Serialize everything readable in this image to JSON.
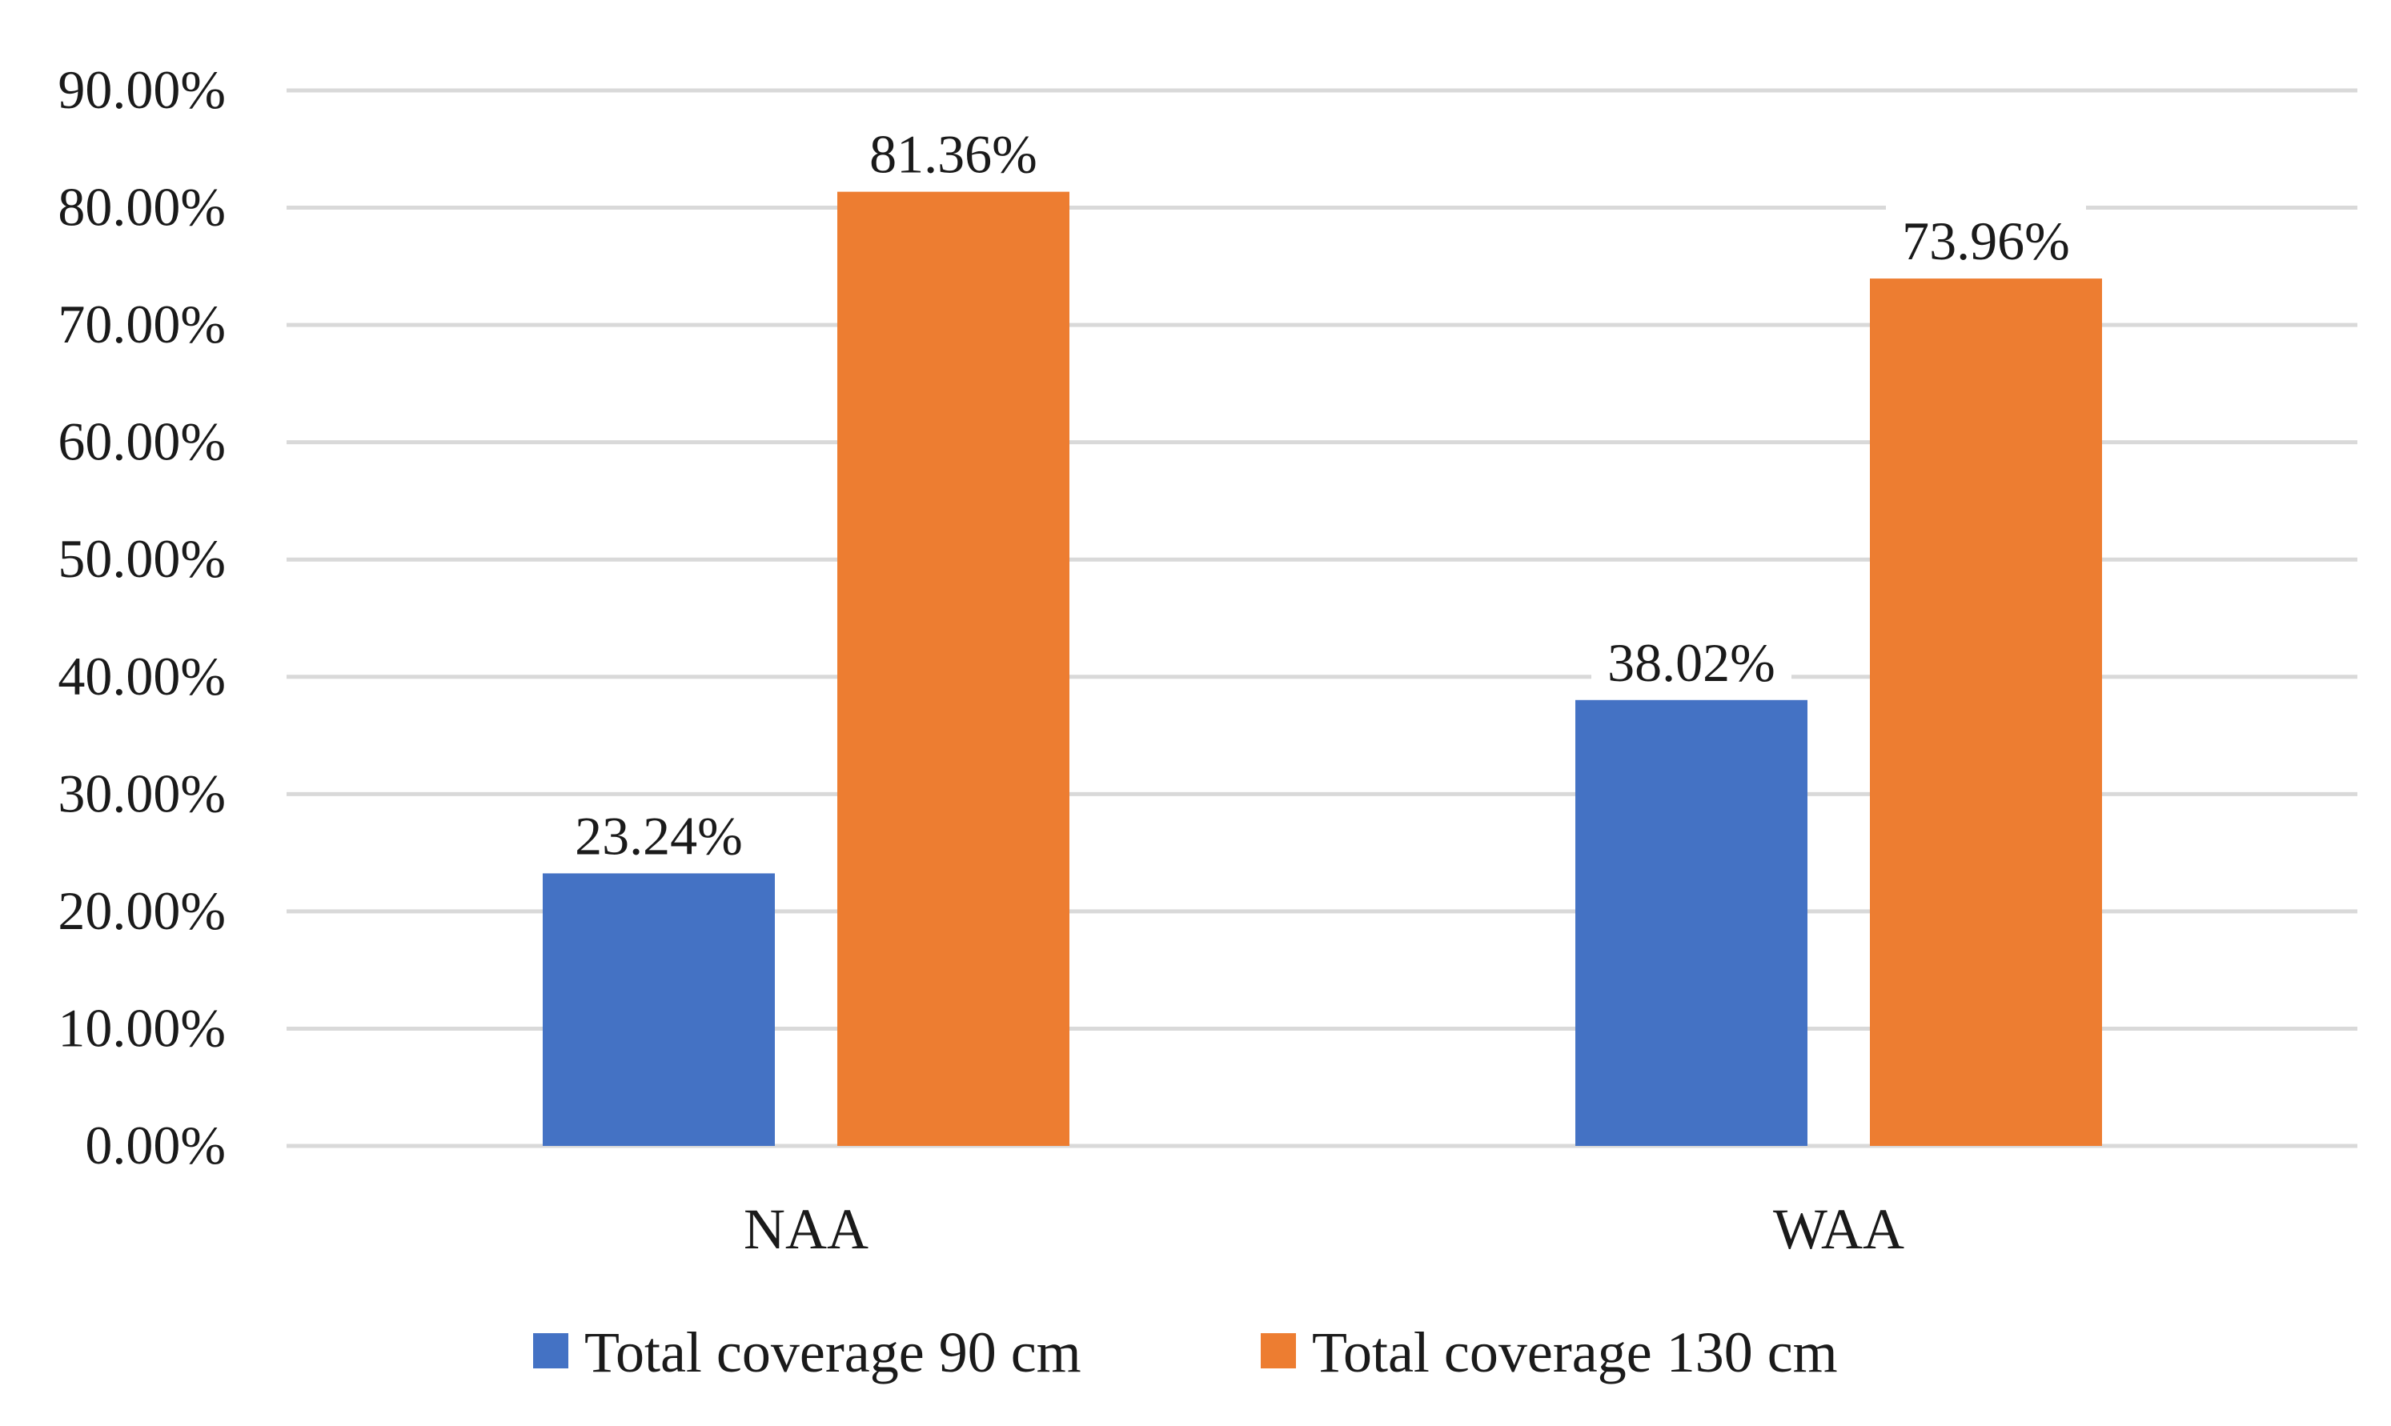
{
  "chart_data": {
    "type": "bar",
    "categories": [
      "NAA",
      "WAA"
    ],
    "series": [
      {
        "name": "Total coverage 90 cm",
        "values": [
          23.24,
          38.02
        ],
        "color": "#4472C4"
      },
      {
        "name": "Total coverage 130 cm",
        "values": [
          81.36,
          73.96
        ],
        "color": "#ED7D31"
      }
    ],
    "data_labels": [
      [
        "23.24%",
        "38.02%"
      ],
      [
        "81.36%",
        "73.96%"
      ]
    ],
    "y_ticks": [
      0,
      10,
      20,
      30,
      40,
      50,
      60,
      70,
      80,
      90
    ],
    "y_tick_labels": [
      "0.00%",
      "10.00%",
      "20.00%",
      "30.00%",
      "40.00%",
      "50.00%",
      "60.00%",
      "70.00%",
      "80.00%",
      "90.00%"
    ],
    "ylim": [
      0,
      90
    ],
    "title": "",
    "xlabel": "",
    "ylabel": "",
    "grid": true,
    "gridline_color": "#D9D9D9",
    "legend_position": "bottom"
  }
}
